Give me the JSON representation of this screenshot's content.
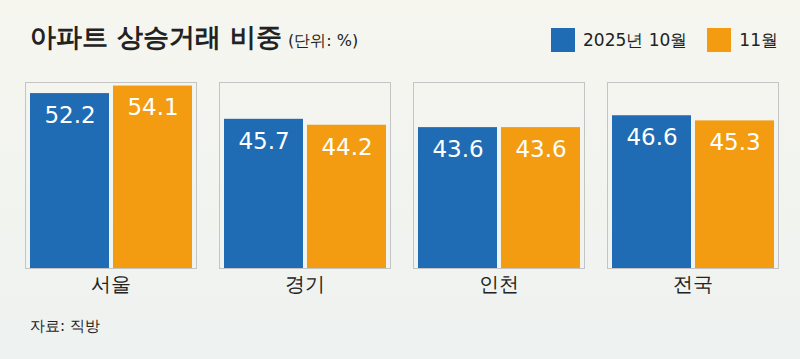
{
  "chart_data": {
    "type": "bar",
    "title": "아파트 상승거래 비중",
    "subtitle": "(단위: %)",
    "categories": [
      "서울",
      "경기",
      "인천",
      "전국"
    ],
    "series": [
      {
        "name": "2025년 10월",
        "color": "#1f6cb4",
        "values": [
          52.2,
          45.7,
          43.6,
          46.6
        ]
      },
      {
        "name": "11월",
        "color": "#f39c12",
        "values": [
          54.1,
          44.2,
          43.6,
          45.3
        ]
      }
    ],
    "ylim": [
      8,
      55
    ],
    "yticks": [],
    "grid": false,
    "legend": "top-right",
    "data_labels": true,
    "tick_labels": "x",
    "source": "자료: 직방"
  }
}
